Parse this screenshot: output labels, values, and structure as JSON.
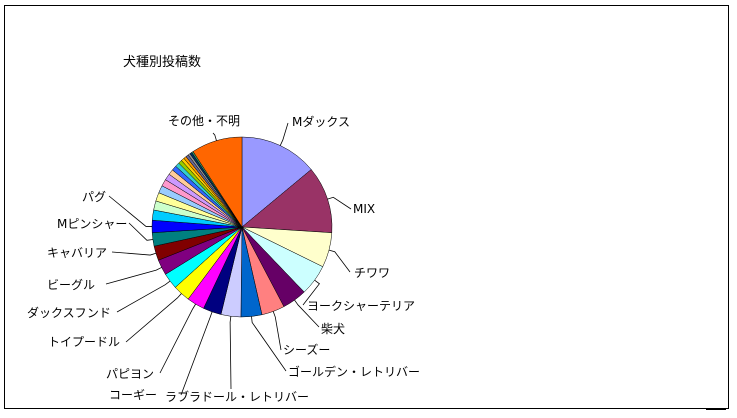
{
  "chart_data": {
    "type": "pie",
    "title": "犬種別投稿数",
    "legend": "none",
    "slices": [
      {
        "label": "Mダックス",
        "value": 14.5,
        "color": "#9999ff"
      },
      {
        "label": "MIX",
        "value": 12.5,
        "color": "#993366"
      },
      {
        "label": "チワワ",
        "value": 6.5,
        "color": "#ffffcc"
      },
      {
        "label": "ヨークシャーテリア",
        "value": 5.8,
        "color": "#ccffff"
      },
      {
        "label": "柴犬",
        "value": 4.6,
        "color": "#660066"
      },
      {
        "label": "シーズー",
        "value": 4.3,
        "color": "#ff8080"
      },
      {
        "label": "ゴールデン・レトリバー",
        "value": 3.9,
        "color": "#0066cc"
      },
      {
        "label": "ラブラドール・レトリバー",
        "value": 3.7,
        "color": "#ccccff"
      },
      {
        "label": "コーギー",
        "value": 3.4,
        "color": "#000080"
      },
      {
        "label": "パピヨン",
        "value": 3.3,
        "color": "#ff00ff"
      },
      {
        "label": "トイプードル",
        "value": 3.2,
        "color": "#ffff00"
      },
      {
        "label": "ダックスフンド",
        "value": 3.0,
        "color": "#00ffff"
      },
      {
        "label": "ビーグル",
        "value": 2.9,
        "color": "#800080"
      },
      {
        "label": "キャバリア",
        "value": 2.7,
        "color": "#800000"
      },
      {
        "label": "Mピンシャー",
        "value": 2.5,
        "color": "#008080"
      },
      {
        "label": "パグ",
        "value": 2.3,
        "color": "#0000ff"
      },
      {
        "label": "",
        "value": 1.9,
        "color": "#00ccff"
      },
      {
        "label": "",
        "value": 1.7,
        "color": "#ccffcc"
      },
      {
        "label": "",
        "value": 1.6,
        "color": "#ffff99"
      },
      {
        "label": "",
        "value": 1.4,
        "color": "#99ccff"
      },
      {
        "label": "",
        "value": 1.3,
        "color": "#ff99cc"
      },
      {
        "label": "",
        "value": 1.2,
        "color": "#cc99ff"
      },
      {
        "label": "",
        "value": 1.0,
        "color": "#ffcc99"
      },
      {
        "label": "",
        "value": 0.9,
        "color": "#3366ff"
      },
      {
        "label": "",
        "value": 0.8,
        "color": "#33cccc"
      },
      {
        "label": "",
        "value": 0.7,
        "color": "#99cc00"
      },
      {
        "label": "",
        "value": 0.6,
        "color": "#ffcc00"
      },
      {
        "label": "",
        "value": 0.5,
        "color": "#ff9900"
      },
      {
        "label": "",
        "value": 0.5,
        "color": "#666699"
      },
      {
        "label": "",
        "value": 0.4,
        "color": "#969696"
      },
      {
        "label": "",
        "value": 0.4,
        "color": "#003366"
      },
      {
        "label": "",
        "value": 0.3,
        "color": "#339966"
      },
      {
        "label": "その他・不明",
        "value": 9.5,
        "color": "#ff6600"
      }
    ]
  }
}
